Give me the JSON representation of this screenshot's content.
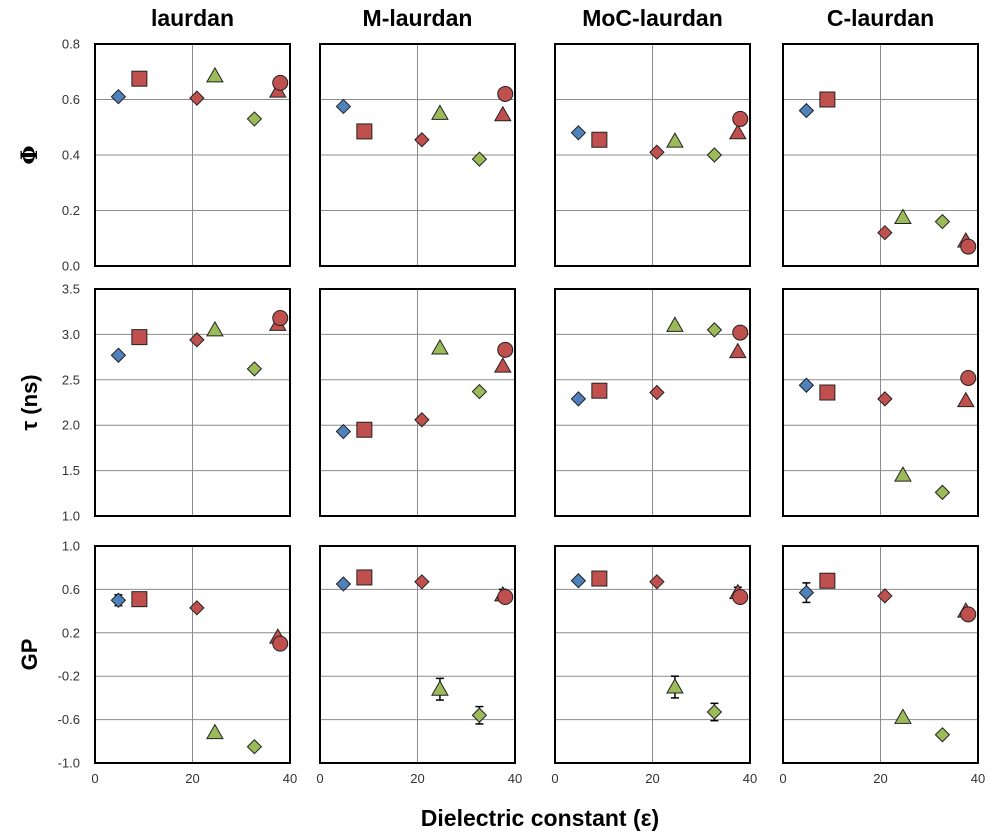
{
  "chart_data": {
    "type": "scatter",
    "xlabel": "Dielectric constant (ε)",
    "xlim": [
      0,
      40
    ],
    "x_ticks": [
      "0",
      "20",
      "40"
    ],
    "columns": [
      "laurdan",
      "M-laurdan",
      "MoC-laurdan",
      "C-laurdan"
    ],
    "colors": {
      "blue": "#4f81bd",
      "red": "#c0504d",
      "green": "#9bbb59"
    },
    "rows": [
      {
        "ylabel": "Φ",
        "ylim": [
          0,
          0.8
        ],
        "y_ticks": [
          "0.0",
          "0.2",
          "0.4",
          "0.6",
          "0.8"
        ],
        "panels": [
          {
            "points": [
              {
                "x": 4.8,
                "y": 0.61,
                "marker": "diamond",
                "color": "blue"
              },
              {
                "x": 9.1,
                "y": 0.675,
                "marker": "square",
                "color": "red"
              },
              {
                "x": 20.9,
                "y": 0.605,
                "marker": "diamond",
                "color": "red"
              },
              {
                "x": 24.6,
                "y": 0.685,
                "marker": "triangle",
                "color": "green"
              },
              {
                "x": 32.7,
                "y": 0.53,
                "marker": "diamond",
                "color": "green"
              },
              {
                "x": 37.5,
                "y": 0.63,
                "marker": "triangle",
                "color": "red"
              },
              {
                "x": 38.0,
                "y": 0.66,
                "marker": "circle",
                "color": "red"
              }
            ]
          },
          {
            "points": [
              {
                "x": 4.8,
                "y": 0.575,
                "marker": "diamond",
                "color": "blue"
              },
              {
                "x": 9.1,
                "y": 0.485,
                "marker": "square",
                "color": "red"
              },
              {
                "x": 20.9,
                "y": 0.455,
                "marker": "diamond",
                "color": "red"
              },
              {
                "x": 24.6,
                "y": 0.55,
                "marker": "triangle",
                "color": "green"
              },
              {
                "x": 32.7,
                "y": 0.385,
                "marker": "diamond",
                "color": "green"
              },
              {
                "x": 37.5,
                "y": 0.545,
                "marker": "triangle",
                "color": "red"
              },
              {
                "x": 38.0,
                "y": 0.62,
                "marker": "circle",
                "color": "red"
              }
            ]
          },
          {
            "points": [
              {
                "x": 4.8,
                "y": 0.48,
                "marker": "diamond",
                "color": "blue"
              },
              {
                "x": 9.1,
                "y": 0.455,
                "marker": "square",
                "color": "red"
              },
              {
                "x": 20.9,
                "y": 0.41,
                "marker": "diamond",
                "color": "red"
              },
              {
                "x": 24.6,
                "y": 0.45,
                "marker": "triangle",
                "color": "green"
              },
              {
                "x": 32.7,
                "y": 0.4,
                "marker": "diamond",
                "color": "green"
              },
              {
                "x": 37.5,
                "y": 0.48,
                "marker": "triangle",
                "color": "red"
              },
              {
                "x": 38.0,
                "y": 0.53,
                "marker": "circle",
                "color": "red"
              }
            ]
          },
          {
            "points": [
              {
                "x": 4.8,
                "y": 0.56,
                "marker": "diamond",
                "color": "blue"
              },
              {
                "x": 9.1,
                "y": 0.6,
                "marker": "square",
                "color": "red"
              },
              {
                "x": 20.9,
                "y": 0.12,
                "marker": "diamond",
                "color": "red"
              },
              {
                "x": 24.6,
                "y": 0.175,
                "marker": "triangle",
                "color": "green"
              },
              {
                "x": 32.7,
                "y": 0.16,
                "marker": "diamond",
                "color": "green"
              },
              {
                "x": 37.5,
                "y": 0.09,
                "marker": "triangle",
                "color": "red"
              },
              {
                "x": 38.0,
                "y": 0.07,
                "marker": "circle",
                "color": "red"
              }
            ]
          }
        ]
      },
      {
        "ylabel": "τ (ns)",
        "ylim": [
          1.0,
          3.5
        ],
        "y_ticks": [
          "1.0",
          "1.5",
          "2.0",
          "2.5",
          "3.0",
          "3.5"
        ],
        "panels": [
          {
            "points": [
              {
                "x": 4.8,
                "y": 2.77,
                "marker": "diamond",
                "color": "blue"
              },
              {
                "x": 9.1,
                "y": 2.97,
                "marker": "square",
                "color": "red"
              },
              {
                "x": 20.9,
                "y": 2.94,
                "marker": "diamond",
                "color": "red"
              },
              {
                "x": 24.6,
                "y": 3.05,
                "marker": "triangle",
                "color": "green"
              },
              {
                "x": 32.7,
                "y": 2.62,
                "marker": "diamond",
                "color": "green"
              },
              {
                "x": 37.5,
                "y": 3.11,
                "marker": "triangle",
                "color": "red"
              },
              {
                "x": 38.0,
                "y": 3.18,
                "marker": "circle",
                "color": "red"
              }
            ]
          },
          {
            "points": [
              {
                "x": 4.8,
                "y": 1.93,
                "marker": "diamond",
                "color": "blue"
              },
              {
                "x": 9.1,
                "y": 1.95,
                "marker": "square",
                "color": "red"
              },
              {
                "x": 20.9,
                "y": 2.06,
                "marker": "diamond",
                "color": "red"
              },
              {
                "x": 24.6,
                "y": 2.85,
                "marker": "triangle",
                "color": "green"
              },
              {
                "x": 32.7,
                "y": 2.37,
                "marker": "diamond",
                "color": "green"
              },
              {
                "x": 37.5,
                "y": 2.65,
                "marker": "triangle",
                "color": "red"
              },
              {
                "x": 38.0,
                "y": 2.83,
                "marker": "circle",
                "color": "red"
              }
            ]
          },
          {
            "points": [
              {
                "x": 4.8,
                "y": 2.29,
                "marker": "diamond",
                "color": "blue"
              },
              {
                "x": 9.1,
                "y": 2.38,
                "marker": "square",
                "color": "red"
              },
              {
                "x": 20.9,
                "y": 2.36,
                "marker": "diamond",
                "color": "red"
              },
              {
                "x": 24.6,
                "y": 3.1,
                "marker": "triangle",
                "color": "green"
              },
              {
                "x": 32.7,
                "y": 3.05,
                "marker": "diamond",
                "color": "green"
              },
              {
                "x": 37.5,
                "y": 2.81,
                "marker": "triangle",
                "color": "red"
              },
              {
                "x": 38.0,
                "y": 3.02,
                "marker": "circle",
                "color": "red"
              }
            ]
          },
          {
            "points": [
              {
                "x": 4.8,
                "y": 2.44,
                "marker": "diamond",
                "color": "blue"
              },
              {
                "x": 9.1,
                "y": 2.36,
                "marker": "square",
                "color": "red"
              },
              {
                "x": 20.9,
                "y": 2.29,
                "marker": "diamond",
                "color": "red"
              },
              {
                "x": 24.6,
                "y": 1.45,
                "marker": "triangle",
                "color": "green"
              },
              {
                "x": 32.7,
                "y": 1.26,
                "marker": "diamond",
                "color": "green"
              },
              {
                "x": 37.5,
                "y": 2.27,
                "marker": "triangle",
                "color": "red"
              },
              {
                "x": 38.0,
                "y": 2.52,
                "marker": "circle",
                "color": "red"
              }
            ]
          }
        ]
      },
      {
        "ylabel": "GP",
        "ylim": [
          -1.0,
          1.0
        ],
        "y_ticks": [
          "-1.0",
          "-0.6",
          "-0.2",
          "0.2",
          "0.6",
          "1.0"
        ],
        "panels": [
          {
            "points": [
              {
                "x": 4.8,
                "y": 0.5,
                "marker": "diamond",
                "color": "blue",
                "err": 0.05
              },
              {
                "x": 9.1,
                "y": 0.51,
                "marker": "square",
                "color": "red"
              },
              {
                "x": 20.9,
                "y": 0.43,
                "marker": "diamond",
                "color": "red"
              },
              {
                "x": 24.6,
                "y": -0.72,
                "marker": "triangle",
                "color": "green"
              },
              {
                "x": 32.7,
                "y": -0.85,
                "marker": "diamond",
                "color": "green"
              },
              {
                "x": 37.5,
                "y": 0.16,
                "marker": "triangle",
                "color": "red"
              },
              {
                "x": 38.0,
                "y": 0.1,
                "marker": "circle",
                "color": "red"
              }
            ]
          },
          {
            "points": [
              {
                "x": 4.8,
                "y": 0.65,
                "marker": "diamond",
                "color": "blue"
              },
              {
                "x": 9.1,
                "y": 0.71,
                "marker": "square",
                "color": "red"
              },
              {
                "x": 20.9,
                "y": 0.67,
                "marker": "diamond",
                "color": "red"
              },
              {
                "x": 24.6,
                "y": -0.32,
                "marker": "triangle",
                "color": "green",
                "err": 0.1
              },
              {
                "x": 32.7,
                "y": -0.56,
                "marker": "diamond",
                "color": "green",
                "err": 0.08
              },
              {
                "x": 37.5,
                "y": 0.55,
                "marker": "triangle",
                "color": "red",
                "err": 0.05
              },
              {
                "x": 38.0,
                "y": 0.53,
                "marker": "circle",
                "color": "red"
              }
            ]
          },
          {
            "points": [
              {
                "x": 4.8,
                "y": 0.68,
                "marker": "diamond",
                "color": "blue"
              },
              {
                "x": 9.1,
                "y": 0.7,
                "marker": "square",
                "color": "red"
              },
              {
                "x": 20.9,
                "y": 0.67,
                "marker": "diamond",
                "color": "red"
              },
              {
                "x": 24.6,
                "y": -0.3,
                "marker": "triangle",
                "color": "green",
                "err": 0.1
              },
              {
                "x": 32.7,
                "y": -0.53,
                "marker": "diamond",
                "color": "green",
                "err": 0.08
              },
              {
                "x": 37.5,
                "y": 0.57,
                "marker": "triangle",
                "color": "red",
                "err": 0.05
              },
              {
                "x": 38.0,
                "y": 0.53,
                "marker": "circle",
                "color": "red"
              }
            ]
          },
          {
            "points": [
              {
                "x": 4.8,
                "y": 0.57,
                "marker": "diamond",
                "color": "blue",
                "err": 0.09
              },
              {
                "x": 9.1,
                "y": 0.68,
                "marker": "square",
                "color": "red"
              },
              {
                "x": 20.9,
                "y": 0.54,
                "marker": "diamond",
                "color": "red"
              },
              {
                "x": 24.6,
                "y": -0.58,
                "marker": "triangle",
                "color": "green"
              },
              {
                "x": 32.7,
                "y": -0.74,
                "marker": "diamond",
                "color": "green"
              },
              {
                "x": 37.5,
                "y": 0.4,
                "marker": "triangle",
                "color": "red"
              },
              {
                "x": 38.0,
                "y": 0.37,
                "marker": "circle",
                "color": "red"
              }
            ]
          }
        ]
      }
    ]
  }
}
